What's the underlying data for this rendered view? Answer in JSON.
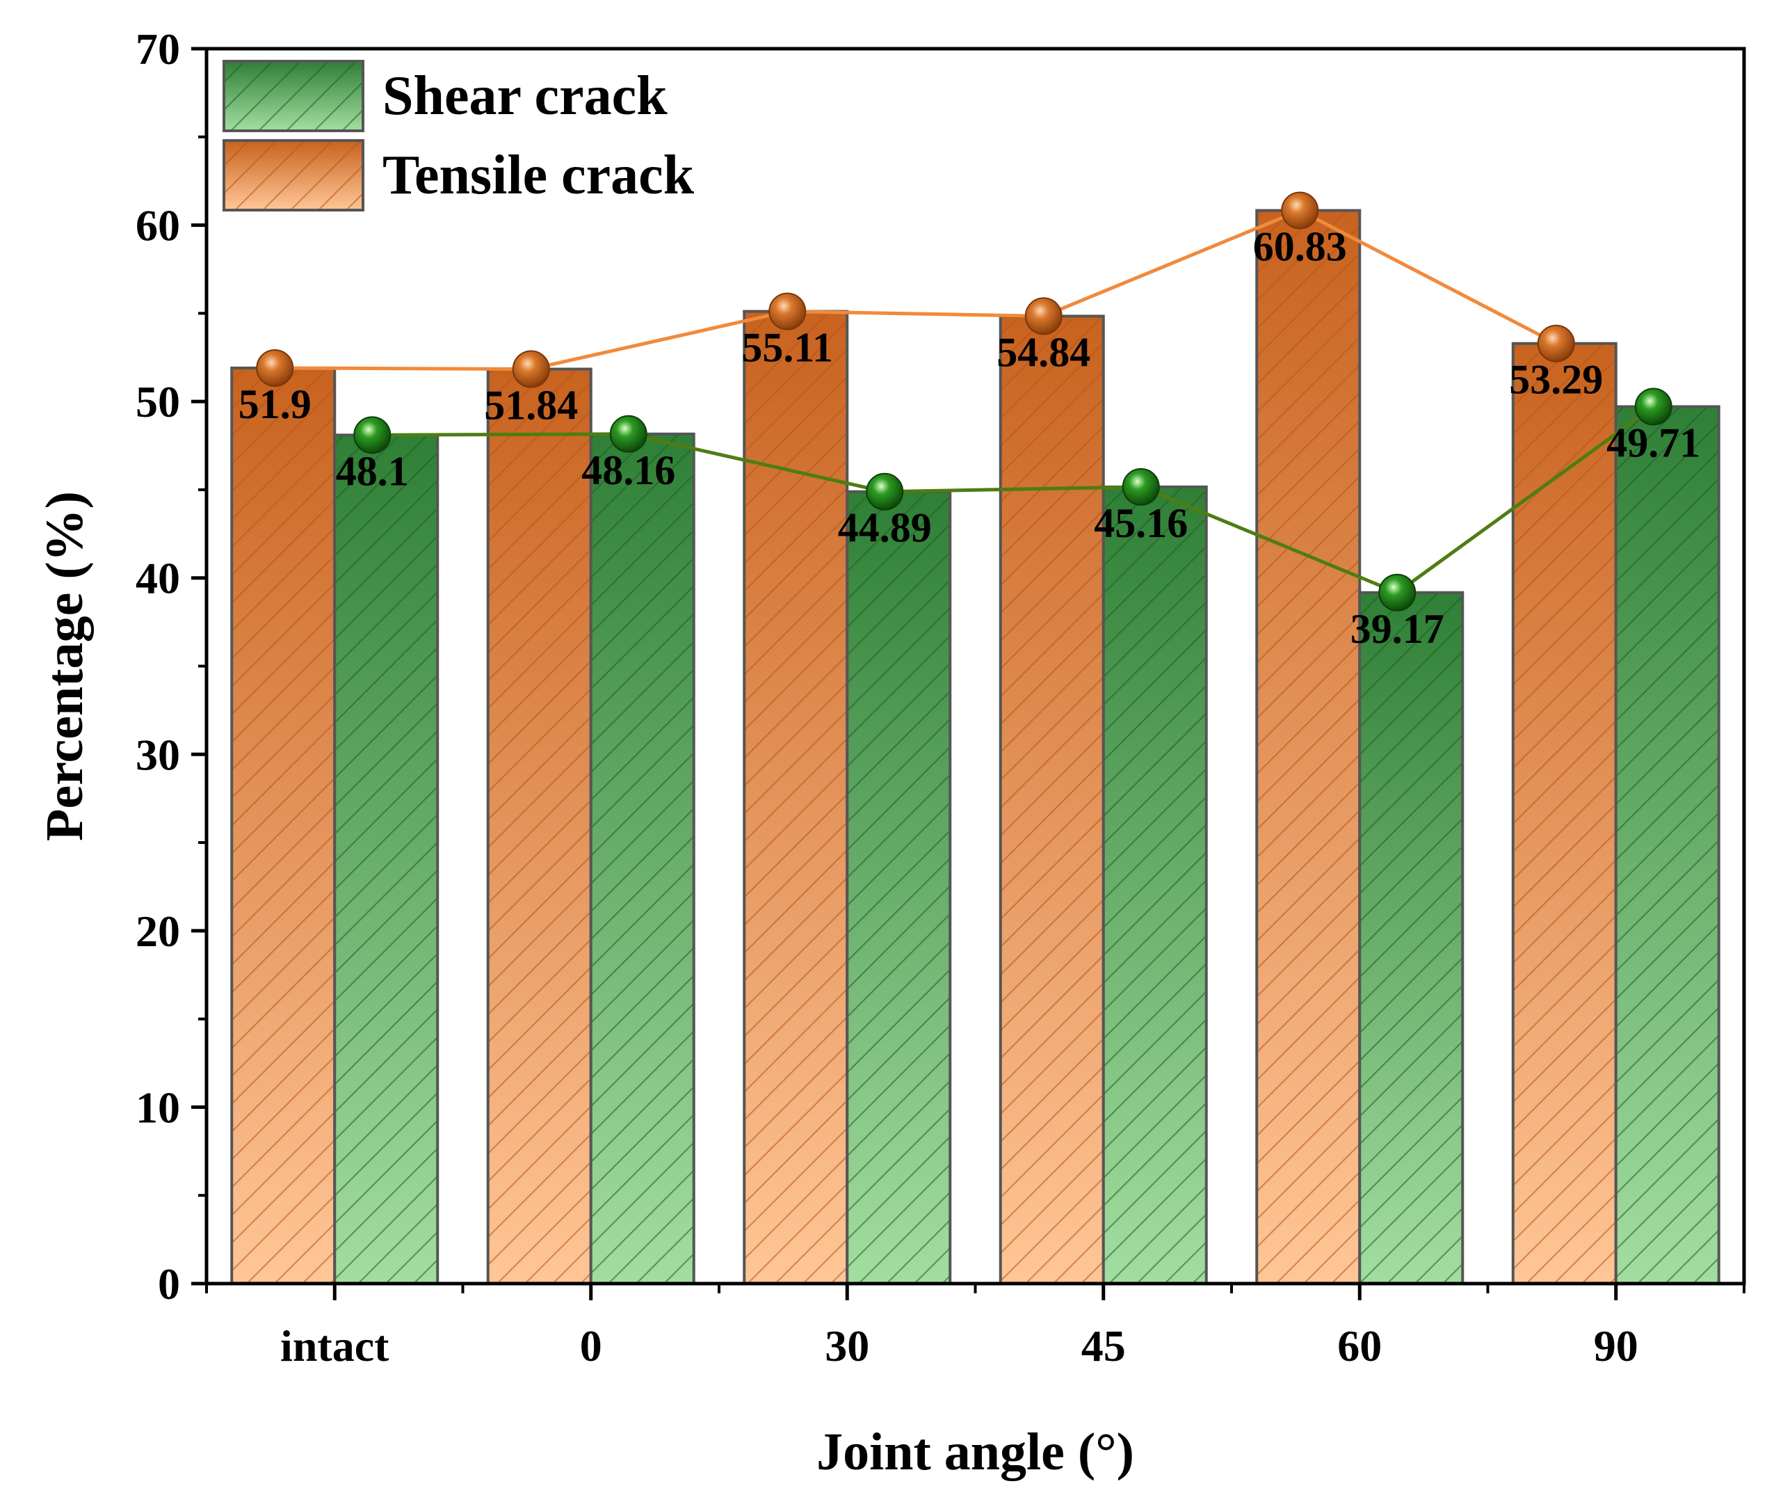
{
  "chart_data": {
    "type": "bar",
    "title": "",
    "xlabel": "Joint angle (°)",
    "ylabel": "Percentage (%)",
    "categories": [
      "intact",
      "0",
      "30",
      "45",
      "60",
      "90"
    ],
    "ylim": [
      0,
      70
    ],
    "yticks": [
      0,
      10,
      20,
      30,
      40,
      50,
      60,
      70
    ],
    "legend_position": "top-left",
    "series": [
      {
        "name": "Tensile crack",
        "values": [
          51.9,
          51.84,
          55.11,
          54.84,
          60.83,
          53.29
        ],
        "labels": [
          "51.9",
          "51.84",
          "55.11",
          "54.84",
          "60.83",
          "53.29"
        ],
        "line_color": "#f08a3c",
        "marker_color": "#c8641e",
        "bar_top_color": "#c8621f",
        "bar_bottom_color": "#ffc697"
      },
      {
        "name": "Shear crack",
        "values": [
          48.1,
          48.16,
          44.89,
          45.16,
          39.17,
          49.71
        ],
        "labels": [
          "48.1",
          "48.16",
          "44.89",
          "45.16",
          "39.17",
          "49.71"
        ],
        "line_color": "#4e7d12",
        "marker_color": "#1e8c1e",
        "bar_top_color": "#2f7f36",
        "bar_bottom_color": "#a3dea1"
      }
    ]
  }
}
